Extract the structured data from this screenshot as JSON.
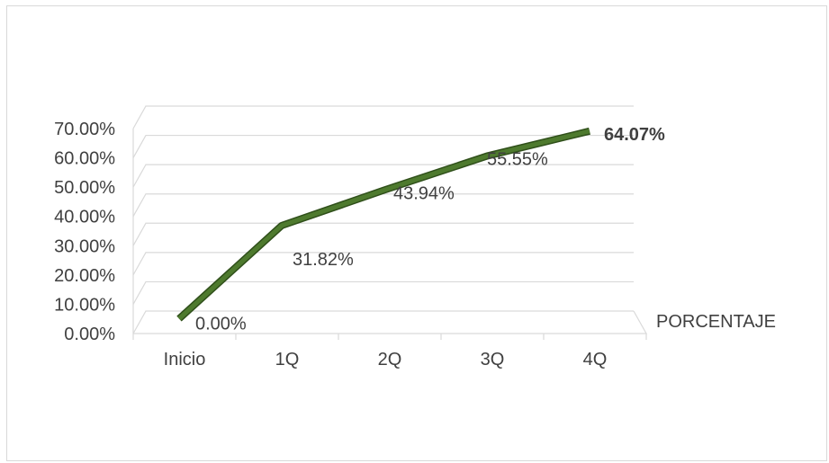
{
  "chart_data": {
    "type": "line",
    "categories": [
      "Inicio",
      "1Q",
      "2Q",
      "3Q",
      "4Q"
    ],
    "series": [
      {
        "name": "PORCENTAJE",
        "values": [
          0.0,
          31.82,
          43.94,
          55.55,
          64.07
        ]
      }
    ],
    "data_labels": [
      "0.00%",
      "31.82%",
      "43.94%",
      "55.55%",
      "64.07%"
    ],
    "y_tick_labels": [
      "0.00%",
      "10.00%",
      "20.00%",
      "30.00%",
      "40.00%",
      "50.00%",
      "60.00%",
      "70.00%"
    ],
    "ylim": [
      0,
      70
    ],
    "grid": true,
    "style": "3d-line",
    "colors": {
      "line": "#4e7a2e",
      "line_dark": "#2f4f1a",
      "grid": "#d9d9d9",
      "text": "#404040"
    }
  }
}
